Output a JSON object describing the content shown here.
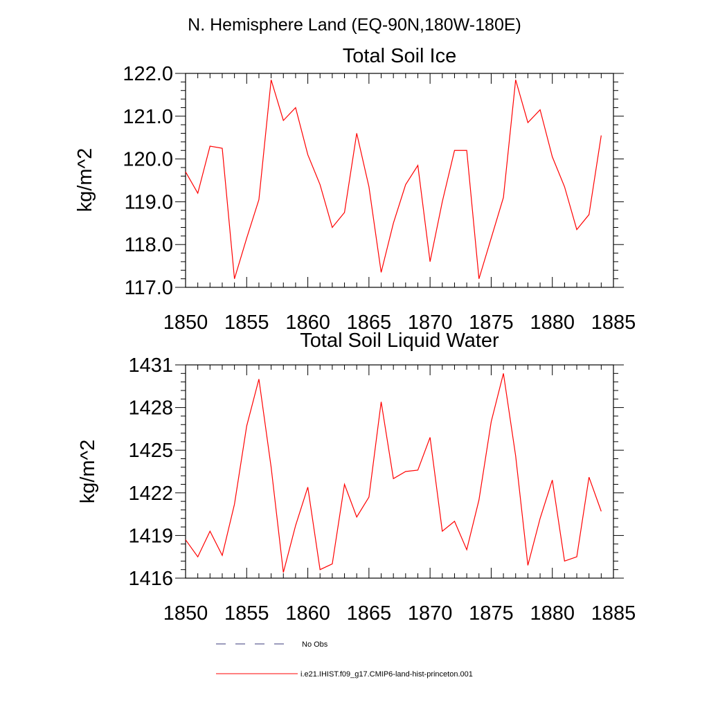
{
  "figure_title": "N. Hemisphere Land (EQ-90N,180W-180E)",
  "legend": {
    "entries": [
      {
        "label": "No Obs",
        "color": "#3a3a7a",
        "dashed": true
      },
      {
        "label": "i.e21.IHIST.f09_g17.CMIP6-land-hist-princeton.001",
        "color": "#ff0000",
        "dashed": false
      }
    ]
  },
  "chart_data": [
    {
      "type": "line",
      "title": "Total Soil Ice",
      "xlabel": "",
      "ylabel": "kg/m^2",
      "xlim": [
        1850,
        1885
      ],
      "ylim": [
        117.0,
        122.0
      ],
      "xticks": [
        1850,
        1855,
        1860,
        1865,
        1870,
        1875,
        1880,
        1885
      ],
      "xtick_labels": [
        "1850",
        "1855",
        "1860",
        "1865",
        "1870",
        "1875",
        "1880",
        "1885"
      ],
      "yticks": [
        117.0,
        118.0,
        119.0,
        120.0,
        121.0,
        122.0
      ],
      "ytick_labels": [
        "117.0",
        "118.0",
        "119.0",
        "120.0",
        "121.0",
        "122.0"
      ],
      "grid": false,
      "series": [
        {
          "color": "#ff0000",
          "x": [
            1850,
            1851,
            1852,
            1853,
            1854,
            1855,
            1856,
            1857,
            1858,
            1859,
            1860,
            1861,
            1862,
            1863,
            1864,
            1865,
            1866,
            1867,
            1868,
            1869,
            1870,
            1871,
            1872,
            1873,
            1874,
            1875,
            1876,
            1877,
            1878,
            1879,
            1880,
            1881,
            1882,
            1883,
            1884
          ],
          "y": [
            119.7,
            119.2,
            120.3,
            120.25,
            117.2,
            118.15,
            119.05,
            121.85,
            120.9,
            121.2,
            120.1,
            119.4,
            118.4,
            118.75,
            120.6,
            119.35,
            117.35,
            118.5,
            119.4,
            119.85,
            117.6,
            119.0,
            120.2,
            120.2,
            117.2,
            118.15,
            119.1,
            121.85,
            120.85,
            121.15,
            120.05,
            119.35,
            118.35,
            118.7,
            120.55
          ]
        }
      ]
    },
    {
      "type": "line",
      "title": "Total Soil Liquid Water",
      "xlabel": "",
      "ylabel": "kg/m^2",
      "xlim": [
        1850,
        1885
      ],
      "ylim": [
        1416,
        1431
      ],
      "xticks": [
        1850,
        1855,
        1860,
        1865,
        1870,
        1875,
        1880,
        1885
      ],
      "xtick_labels": [
        "1850",
        "1855",
        "1860",
        "1865",
        "1870",
        "1875",
        "1880",
        "1885"
      ],
      "yticks": [
        1416,
        1419,
        1422,
        1425,
        1428,
        1431
      ],
      "ytick_labels": [
        "1416",
        "1419",
        "1422",
        "1425",
        "1428",
        "1431"
      ],
      "grid": false,
      "series": [
        {
          "color": "#ff0000",
          "x": [
            1850,
            1851,
            1852,
            1853,
            1854,
            1855,
            1856,
            1857,
            1858,
            1859,
            1860,
            1861,
            1862,
            1863,
            1864,
            1865,
            1866,
            1867,
            1868,
            1869,
            1870,
            1871,
            1872,
            1873,
            1874,
            1875,
            1876,
            1877,
            1878,
            1879,
            1880,
            1881,
            1882,
            1883,
            1884
          ],
          "y": [
            1418.7,
            1417.5,
            1419.3,
            1417.6,
            1421.2,
            1426.7,
            1430.0,
            1423.8,
            1416.4,
            1419.7,
            1422.4,
            1416.6,
            1417.0,
            1422.6,
            1420.3,
            1421.7,
            1428.4,
            1423.0,
            1423.5,
            1423.6,
            1425.9,
            1419.3,
            1420.0,
            1418.0,
            1421.5,
            1427.0,
            1430.4,
            1424.6,
            1416.9,
            1420.2,
            1422.9,
            1417.2,
            1417.5,
            1423.1,
            1420.7
          ]
        }
      ]
    }
  ]
}
